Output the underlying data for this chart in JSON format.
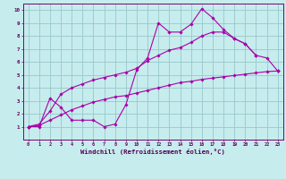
{
  "bg_color": "#c6eced",
  "grid_color": "#98c8ca",
  "line_color": "#aa00aa",
  "xlabel": "Windchill (Refroidissement éolien,°C)",
  "x": [
    0,
    1,
    2,
    3,
    4,
    5,
    6,
    7,
    8,
    9,
    10,
    11,
    12,
    13,
    14,
    15,
    16,
    17,
    18,
    19,
    20,
    21,
    22,
    23
  ],
  "line_zigzag": [
    1.0,
    1.0,
    3.2,
    2.5,
    1.5,
    1.5,
    1.5,
    1.0,
    1.2,
    2.7,
    5.4,
    6.3,
    9.0,
    8.3,
    8.3,
    8.9,
    10.1,
    9.4,
    8.5,
    7.8,
    7.4,
    6.5,
    null,
    5.3
  ],
  "line_upper": [
    1.0,
    1.2,
    2.2,
    3.5,
    4.0,
    4.3,
    4.6,
    4.8,
    5.0,
    5.2,
    5.5,
    6.1,
    6.5,
    6.9,
    7.1,
    7.5,
    8.0,
    8.3,
    8.3,
    7.8,
    7.4,
    6.5,
    6.3,
    5.3
  ],
  "line_lower": [
    1.0,
    1.1,
    1.5,
    1.9,
    2.3,
    2.6,
    2.9,
    3.1,
    3.3,
    3.4,
    3.6,
    3.8,
    4.0,
    4.2,
    4.4,
    4.5,
    4.65,
    4.75,
    4.85,
    4.95,
    5.05,
    5.15,
    5.25,
    5.3
  ],
  "ylim": [
    0,
    10.5
  ],
  "xlim": [
    -0.5,
    23.5
  ],
  "yticks": [
    1,
    2,
    3,
    4,
    5,
    6,
    7,
    8,
    9,
    10
  ],
  "xticks": [
    0,
    1,
    2,
    3,
    4,
    5,
    6,
    7,
    8,
    9,
    10,
    11,
    12,
    13,
    14,
    15,
    16,
    17,
    18,
    19,
    20,
    21,
    22,
    23
  ]
}
